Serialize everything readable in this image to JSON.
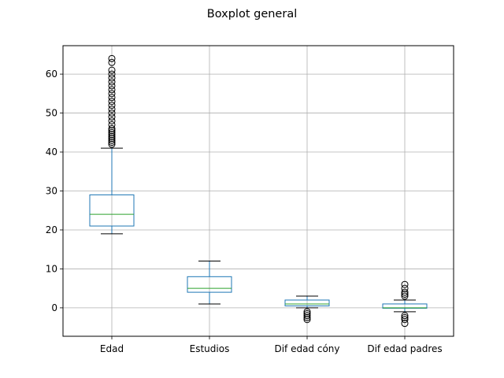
{
  "chart_data": {
    "type": "boxplot",
    "title": "Boxplot general",
    "xlabel": "",
    "ylabel": "",
    "ylim": [
      -7.3,
      67.3
    ],
    "yticks": [
      0,
      10,
      20,
      30,
      40,
      50,
      60
    ],
    "grid": true,
    "categories": [
      "Edad",
      "Estudios",
      "Dif edad cóny",
      "Dif edad padres"
    ],
    "boxes": [
      {
        "whisker_low": 19,
        "q1": 21,
        "median": 24,
        "q3": 29,
        "whisker_high": 41,
        "outliers": [
          42,
          42.5,
          43,
          43.5,
          44,
          44.5,
          45,
          45.5,
          46,
          47,
          48,
          49,
          50,
          51,
          52,
          53,
          54,
          55,
          56,
          57,
          58,
          59,
          60,
          61,
          63,
          64
        ]
      },
      {
        "whisker_low": 1,
        "q1": 4,
        "median": 5,
        "q3": 8,
        "whisker_high": 12,
        "outliers": []
      },
      {
        "whisker_low": 0,
        "q1": 0.5,
        "median": 1,
        "q3": 2,
        "whisker_high": 3,
        "outliers": [
          -1,
          -1.5,
          -2,
          -2.5,
          -3
        ]
      },
      {
        "whisker_low": -1,
        "q1": -0.1,
        "median": 0,
        "q3": 1,
        "whisker_high": 2,
        "outliers": [
          3,
          3.5,
          4,
          5,
          6,
          -2,
          -2.5,
          -3,
          -4
        ]
      }
    ],
    "colors": {
      "box": "#1f77b4",
      "median": "#2ca02c",
      "whisker_cap": "#000000",
      "flier": "#000000",
      "grid": "#b0b0b0",
      "axes": "#000000"
    }
  }
}
